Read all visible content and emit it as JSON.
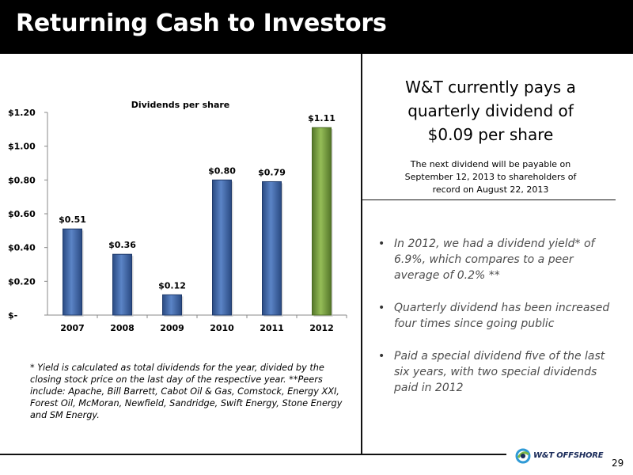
{
  "slide": {
    "title": "Returning Cash to Investors",
    "headline_lines": [
      "W&T currently pays a",
      "quarterly dividend of",
      "$0.09 per share"
    ],
    "subtext_lines": [
      "The next dividend will be payable on",
      "September 12, 2013 to shareholders of",
      "record on August 22, 2013"
    ],
    "bullets": [
      "In 2012, we had a dividend yield* of 6.9%, which compares to a peer average of 0.2% **",
      "Quarterly dividend has been increased four times since going public",
      "Paid a special dividend five of the last six years, with two special dividends paid in 2012"
    ],
    "footnote": "* Yield is calculated as total dividends for the year, divided by the closing stock price on the last day of the respective year.  **Peers include: Apache, Bill Barrett, Cabot Oil & Gas, Comstock, Energy XXI, Forest Oil, McMoran, Newfield, Sandridge, Swift Energy, Stone Energy and SM Energy.",
    "logo_text": "W&T OFFSHORE",
    "page_number": "29"
  },
  "colors": {
    "bar_blue": "#3d64a6",
    "bar_green": "#77a03d",
    "title_bg": "#000000"
  },
  "chart_data": {
    "type": "bar",
    "title": "Dividends per share",
    "categories": [
      "2007",
      "2008",
      "2009",
      "2010",
      "2011",
      "2012"
    ],
    "values": [
      0.51,
      0.36,
      0.12,
      0.8,
      0.79,
      1.11
    ],
    "data_labels": [
      "$0.51",
      "$0.36",
      "$0.12",
      "$0.80",
      "$0.79",
      "$1.11"
    ],
    "bar_colors": [
      "#3d64a6",
      "#3d64a6",
      "#3d64a6",
      "#3d64a6",
      "#3d64a6",
      "#77a03d"
    ],
    "ylim": [
      0,
      1.2
    ],
    "yticks": [
      0,
      0.2,
      0.4,
      0.6,
      0.8,
      1.0,
      1.2
    ],
    "ytick_labels": [
      "$-",
      "$0.20",
      "$0.40",
      "$0.60",
      "$0.80",
      "$1.00",
      "$1.20"
    ],
    "xlabel": "",
    "ylabel": "",
    "grid": false,
    "legend": false
  }
}
